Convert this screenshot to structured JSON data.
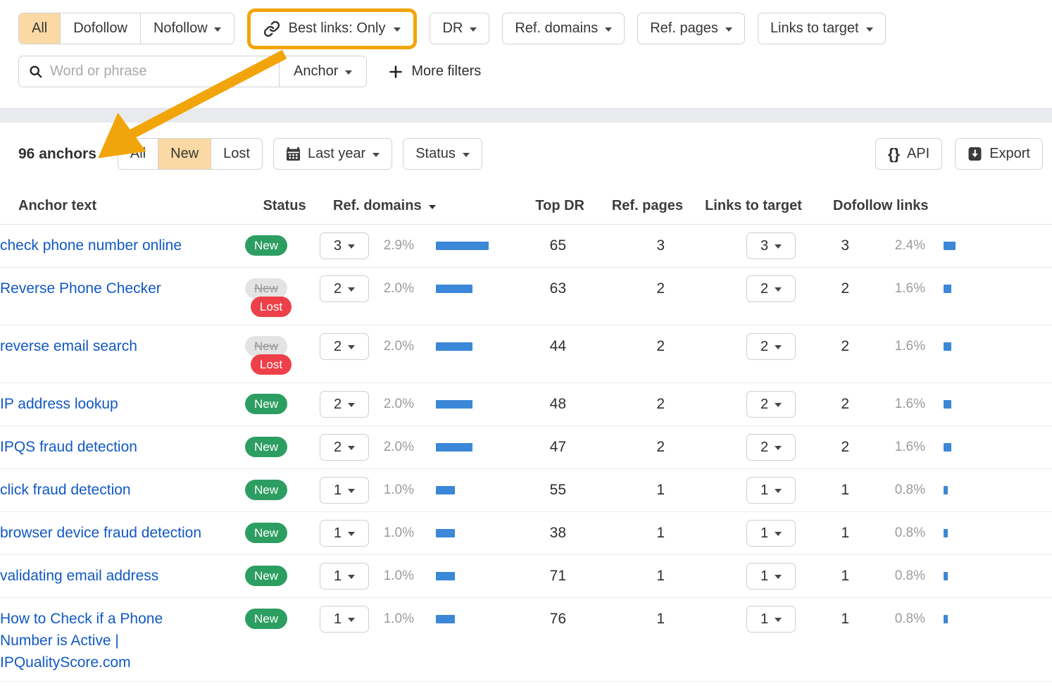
{
  "colors": {
    "accent_orange": "#f2a50a",
    "selected_peach": "#fbd9a5",
    "link_blue": "#1159c4",
    "bar_blue": "#3b87d8",
    "badge_green": "#2d9e61",
    "badge_red": "#ee4048",
    "band_gray": "#e8eaed"
  },
  "filter_bar": {
    "link_tabs": {
      "all": "All",
      "dofollow": "Dofollow",
      "nofollow": "Nofollow"
    },
    "best_links_label": "Best links: Only",
    "dr_label": "DR",
    "ref_domains_label": "Ref. domains",
    "ref_pages_label": "Ref. pages",
    "links_to_target_label": "Links to target",
    "search_placeholder": "Word or phrase",
    "search_value": "",
    "anchor_label": "Anchor",
    "more_filters_label": "More filters"
  },
  "toolbar": {
    "count_label": "96 anchors",
    "status_tabs": {
      "all": "All",
      "new": "New",
      "lost": "Lost"
    },
    "date_range_label": "Last year",
    "status_dropdown_label": "Status",
    "api_label": "API",
    "export_label": "Export"
  },
  "table": {
    "headers": {
      "anchor": "Anchor text",
      "status": "Status",
      "ref_domains": "Ref. domains",
      "top_dr": "Top DR",
      "ref_pages": "Ref. pages",
      "links_to_target": "Links to target",
      "dofollow_links": "Dofollow links"
    },
    "rows": [
      {
        "anchor": "check phone number online",
        "status": [
          "New"
        ],
        "ref_domains": "3",
        "ref_domains_pct": "2.9%",
        "ref_domains_bar": 75,
        "top_dr": "65",
        "ref_pages": "3",
        "links_to_target": "3",
        "links_num": "3",
        "dofollow_pct": "2.4%",
        "dofollow_bar": 17
      },
      {
        "anchor": "Reverse Phone Checker",
        "status": [
          "New",
          "Lost"
        ],
        "ref_domains": "2",
        "ref_domains_pct": "2.0%",
        "ref_domains_bar": 52,
        "top_dr": "63",
        "ref_pages": "2",
        "links_to_target": "2",
        "links_num": "2",
        "dofollow_pct": "1.6%",
        "dofollow_bar": 11
      },
      {
        "anchor": "reverse email search",
        "status": [
          "New",
          "Lost"
        ],
        "ref_domains": "2",
        "ref_domains_pct": "2.0%",
        "ref_domains_bar": 52,
        "top_dr": "44",
        "ref_pages": "2",
        "links_to_target": "2",
        "links_num": "2",
        "dofollow_pct": "1.6%",
        "dofollow_bar": 11
      },
      {
        "anchor": "IP address lookup",
        "status": [
          "New"
        ],
        "ref_domains": "2",
        "ref_domains_pct": "2.0%",
        "ref_domains_bar": 52,
        "top_dr": "48",
        "ref_pages": "2",
        "links_to_target": "2",
        "links_num": "2",
        "dofollow_pct": "1.6%",
        "dofollow_bar": 11
      },
      {
        "anchor": "IPQS fraud detection",
        "status": [
          "New"
        ],
        "ref_domains": "2",
        "ref_domains_pct": "2.0%",
        "ref_domains_bar": 52,
        "top_dr": "47",
        "ref_pages": "2",
        "links_to_target": "2",
        "links_num": "2",
        "dofollow_pct": "1.6%",
        "dofollow_bar": 11
      },
      {
        "anchor": "click fraud detection",
        "status": [
          "New"
        ],
        "ref_domains": "1",
        "ref_domains_pct": "1.0%",
        "ref_domains_bar": 27,
        "top_dr": "55",
        "ref_pages": "1",
        "links_to_target": "1",
        "links_num": "1",
        "dofollow_pct": "0.8%",
        "dofollow_bar": 6
      },
      {
        "anchor": "browser device fraud detection",
        "status": [
          "New"
        ],
        "ref_domains": "1",
        "ref_domains_pct": "1.0%",
        "ref_domains_bar": 27,
        "top_dr": "38",
        "ref_pages": "1",
        "links_to_target": "1",
        "links_num": "1",
        "dofollow_pct": "0.8%",
        "dofollow_bar": 6
      },
      {
        "anchor": "validating email address",
        "status": [
          "New"
        ],
        "ref_domains": "1",
        "ref_domains_pct": "1.0%",
        "ref_domains_bar": 27,
        "top_dr": "71",
        "ref_pages": "1",
        "links_to_target": "1",
        "links_num": "1",
        "dofollow_pct": "0.8%",
        "dofollow_bar": 6
      },
      {
        "anchor": "How to Check if a Phone Number is Active | IPQualityScore.com",
        "status": [
          "New"
        ],
        "ref_domains": "1",
        "ref_domains_pct": "1.0%",
        "ref_domains_bar": 27,
        "top_dr": "76",
        "ref_pages": "1",
        "links_to_target": "1",
        "links_num": "1",
        "dofollow_pct": "0.8%",
        "dofollow_bar": 6
      }
    ]
  }
}
